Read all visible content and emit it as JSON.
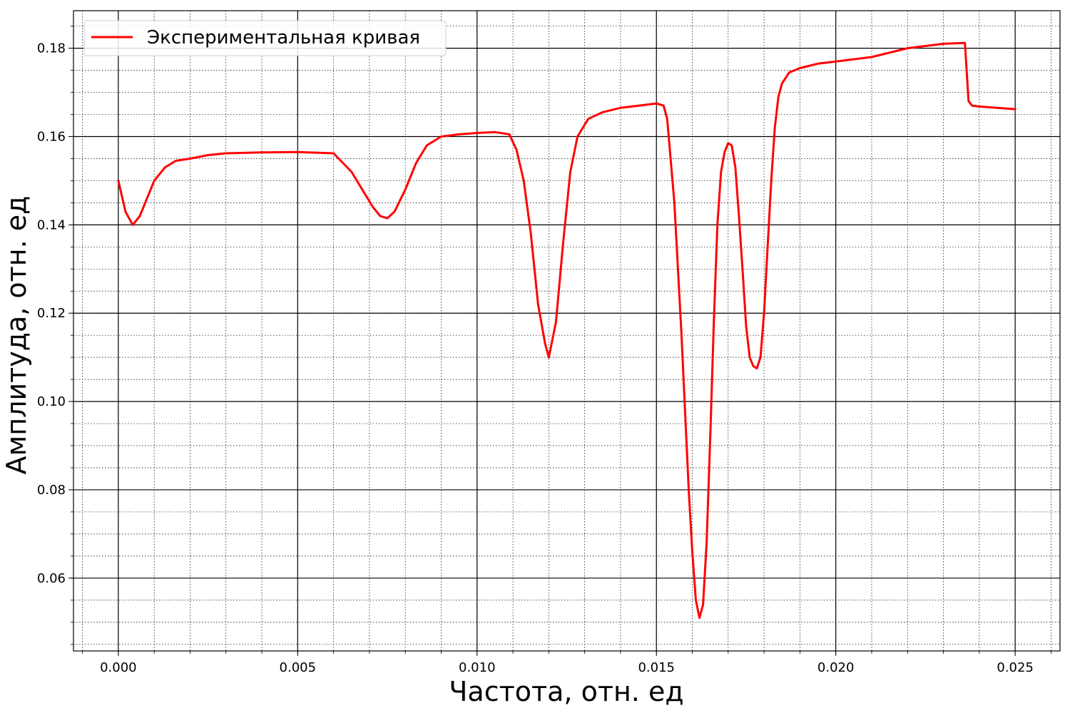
{
  "chart_data": {
    "type": "line",
    "xlabel": "Частота, отн. ед",
    "ylabel": "Амплитуда, отн. ед",
    "xlim": [
      -0.00125,
      0.02625
    ],
    "ylim": [
      0.0435,
      0.1885
    ],
    "x_ticks": [
      0.0,
      0.005,
      0.01,
      0.015,
      0.02,
      0.025
    ],
    "x_tick_labels": [
      "0.000",
      "0.005",
      "0.010",
      "0.015",
      "0.020",
      "0.025"
    ],
    "y_ticks": [
      0.06,
      0.08,
      0.1,
      0.12,
      0.14,
      0.16,
      0.18
    ],
    "y_tick_labels": [
      "0.06",
      "0.08",
      "0.10",
      "0.12",
      "0.14",
      "0.16",
      "0.18"
    ],
    "x_minor_step": 0.001,
    "y_minor_step": 0.005,
    "grid": "major solid + minor dotted",
    "legend": {
      "position": "upper-left"
    },
    "series": [
      {
        "name": "Экспериментальная кривая",
        "color": "#ff0000",
        "x": [
          0.0,
          0.0002,
          0.0004,
          0.0006,
          0.0008,
          0.001,
          0.0013,
          0.0016,
          0.002,
          0.0025,
          0.003,
          0.004,
          0.005,
          0.006,
          0.0065,
          0.0068,
          0.0071,
          0.0073,
          0.0075,
          0.0077,
          0.008,
          0.0083,
          0.0086,
          0.009,
          0.0095,
          0.01,
          0.0105,
          0.0109,
          0.0111,
          0.0113,
          0.0115,
          0.0117,
          0.0119,
          0.012,
          0.0122,
          0.0124,
          0.0126,
          0.0128,
          0.0131,
          0.0135,
          0.014,
          0.0145,
          0.015,
          0.0152,
          0.0153,
          0.0155,
          0.0157,
          0.0159,
          0.016,
          0.0161,
          0.0162,
          0.0163,
          0.0164,
          0.0165,
          0.0166,
          0.0167,
          0.0168,
          0.0169,
          0.017,
          0.0171,
          0.0172,
          0.0173,
          0.0174,
          0.0175,
          0.0176,
          0.0177,
          0.0178,
          0.0179,
          0.018,
          0.0181,
          0.0182,
          0.0183,
          0.0184,
          0.0185,
          0.0187,
          0.019,
          0.0195,
          0.02,
          0.021,
          0.022,
          0.023,
          0.0236,
          0.0237,
          0.0238,
          0.024,
          0.0245,
          0.025
        ],
        "y": [
          0.15,
          0.143,
          0.14,
          0.142,
          0.146,
          0.15,
          0.153,
          0.1545,
          0.155,
          0.1558,
          0.1562,
          0.1564,
          0.1565,
          0.1562,
          0.152,
          0.148,
          0.144,
          0.142,
          0.1415,
          0.143,
          0.148,
          0.154,
          0.158,
          0.16,
          0.1605,
          0.1608,
          0.161,
          0.1605,
          0.157,
          0.15,
          0.138,
          0.122,
          0.113,
          0.11,
          0.118,
          0.136,
          0.152,
          0.16,
          0.164,
          0.1655,
          0.1665,
          0.167,
          0.1675,
          0.167,
          0.164,
          0.145,
          0.115,
          0.08,
          0.066,
          0.055,
          0.051,
          0.054,
          0.068,
          0.092,
          0.118,
          0.14,
          0.152,
          0.1565,
          0.1585,
          0.158,
          0.153,
          0.142,
          0.13,
          0.117,
          0.11,
          0.108,
          0.1075,
          0.11,
          0.12,
          0.135,
          0.15,
          0.162,
          0.169,
          0.172,
          0.1745,
          0.1755,
          0.1765,
          0.177,
          0.178,
          0.18,
          0.181,
          0.1812,
          0.168,
          0.167,
          0.1668,
          0.1665,
          0.1662
        ]
      }
    ]
  }
}
